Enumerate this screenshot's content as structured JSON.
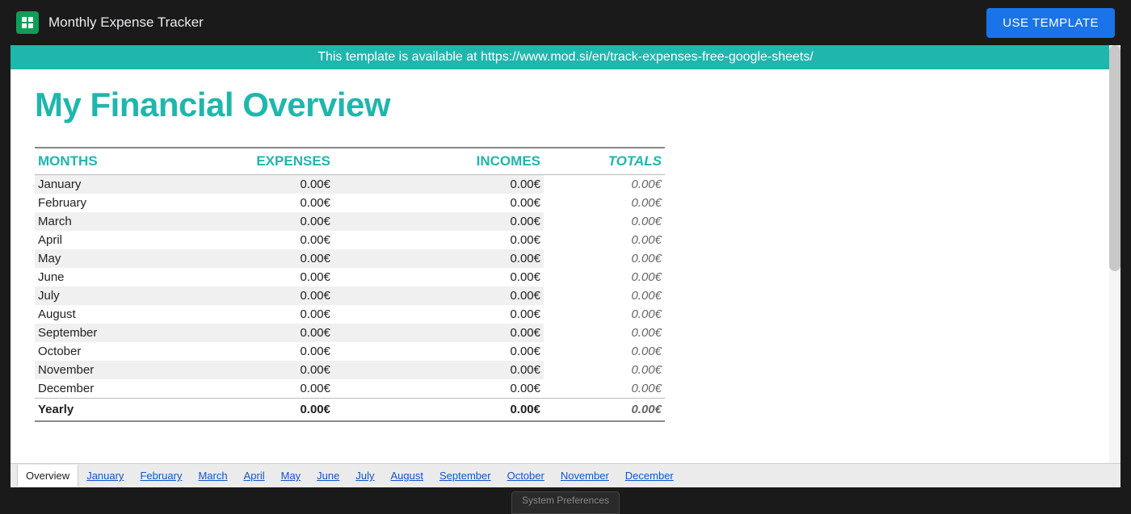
{
  "header": {
    "doc_title": "Monthly Expense Tracker",
    "use_template_label": "USE TEMPLATE"
  },
  "banner": {
    "text": "This template is available at https://www.mod.si/en/track-expenses-free-google-sheets/",
    "background_color": "#1fb6ad"
  },
  "page": {
    "title": "My Financial Overview",
    "title_color": "#1fb6ad"
  },
  "table": {
    "columns": [
      "MONTHS",
      "EXPENSES",
      "INCOMES",
      "TOTALS"
    ],
    "header_color": "#1fb6ad",
    "row_alt_bg": "#f0f0f0",
    "rows": [
      {
        "month": "January",
        "expenses": "0.00€",
        "incomes": "0.00€",
        "totals": "0.00€"
      },
      {
        "month": "February",
        "expenses": "0.00€",
        "incomes": "0.00€",
        "totals": "0.00€"
      },
      {
        "month": "March",
        "expenses": "0.00€",
        "incomes": "0.00€",
        "totals": "0.00€"
      },
      {
        "month": "April",
        "expenses": "0.00€",
        "incomes": "0.00€",
        "totals": "0.00€"
      },
      {
        "month": "May",
        "expenses": "0.00€",
        "incomes": "0.00€",
        "totals": "0.00€"
      },
      {
        "month": "June",
        "expenses": "0.00€",
        "incomes": "0.00€",
        "totals": "0.00€"
      },
      {
        "month": "July",
        "expenses": "0.00€",
        "incomes": "0.00€",
        "totals": "0.00€"
      },
      {
        "month": "August",
        "expenses": "0.00€",
        "incomes": "0.00€",
        "totals": "0.00€"
      },
      {
        "month": "September",
        "expenses": "0.00€",
        "incomes": "0.00€",
        "totals": "0.00€"
      },
      {
        "month": "October",
        "expenses": "0.00€",
        "incomes": "0.00€",
        "totals": "0.00€"
      },
      {
        "month": "November",
        "expenses": "0.00€",
        "incomes": "0.00€",
        "totals": "0.00€"
      },
      {
        "month": "December",
        "expenses": "0.00€",
        "incomes": "0.00€",
        "totals": "0.00€"
      }
    ],
    "yearly": {
      "month": "Yearly",
      "expenses": "0.00€",
      "incomes": "0.00€",
      "totals": "0.00€"
    }
  },
  "tabs": {
    "items": [
      "Overview",
      "January",
      "February",
      "March",
      "April",
      "May",
      "June",
      "July",
      "August",
      "September",
      "October",
      "November",
      "December"
    ],
    "active_index": 0
  },
  "footer": {
    "sys_pref_label": "System Preferences"
  },
  "colors": {
    "brand_teal": "#1fb6ad",
    "primary_blue": "#1a73e8",
    "dark_bg": "#1a1a1a",
    "link": "#1155cc"
  }
}
